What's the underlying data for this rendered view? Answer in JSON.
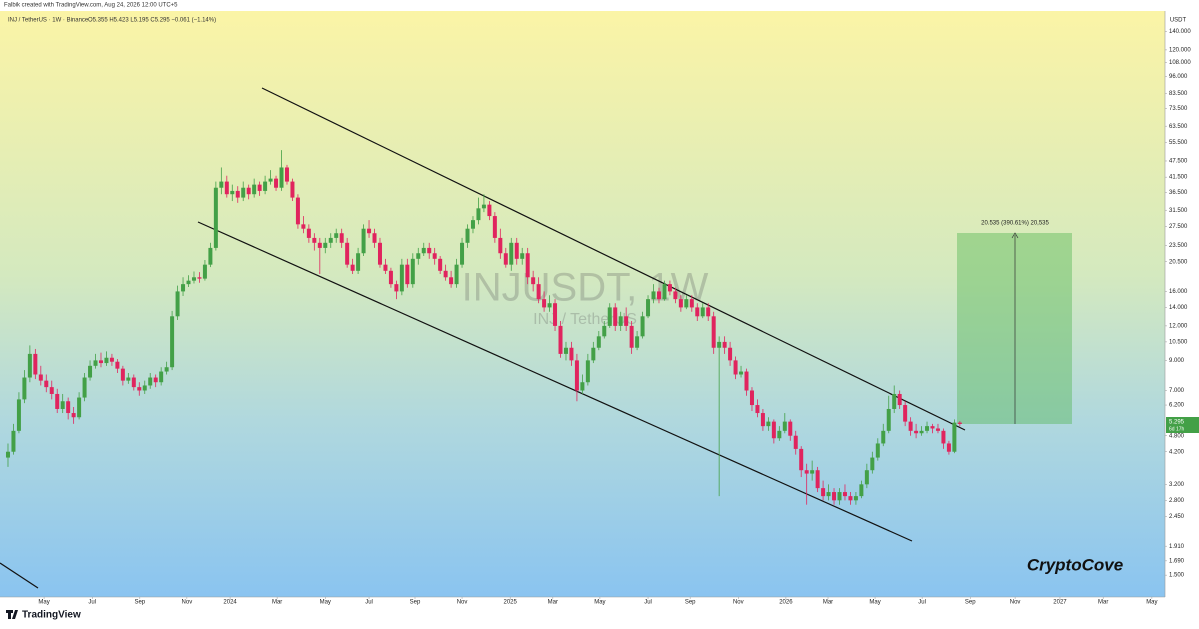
{
  "header": {
    "credit": "Falbik created with TradingView.com, Aug 24, 2026 12:00 UTC+5",
    "logo": "TradingView"
  },
  "chart_data": {
    "type": "candlestick",
    "legend": {
      "symbol": "INJ / TetherUS · 1W · Binance",
      "ohlc": "O5.355 H5.423 L5.195 C5.295 −0.061 (−1.14%)"
    },
    "watermark": {
      "symbol": "INJUSDT, 1W",
      "name": "INJ / TetherUS"
    },
    "y_axis_label": "USDT",
    "last_price": "5.295",
    "countdown": "6d 17h",
    "measure_label": "20.535 (390.61%) 20,535",
    "signature": "CryptoCove",
    "up_color": "#43a047",
    "down_color": "#e0245e",
    "log_scale": true,
    "grid": false,
    "ylim": [
      1.25,
      166
    ],
    "yticks": [
      {
        "value": 140,
        "label": "140.000"
      },
      {
        "value": 120,
        "label": "120.000"
      },
      {
        "value": 108,
        "label": "108.000"
      },
      {
        "value": 96,
        "label": "96.000"
      },
      {
        "value": 83.5,
        "label": "83.500"
      },
      {
        "value": 73.5,
        "label": "73.500"
      },
      {
        "value": 63.5,
        "label": "63.500"
      },
      {
        "value": 55.5,
        "label": "55.500"
      },
      {
        "value": 47.5,
        "label": "47.500"
      },
      {
        "value": 41.5,
        "label": "41.500"
      },
      {
        "value": 36.5,
        "label": "36.500"
      },
      {
        "value": 31.5,
        "label": "31.500"
      },
      {
        "value": 27.5,
        "label": "27.500"
      },
      {
        "value": 23.5,
        "label": "23.500"
      },
      {
        "value": 20.5,
        "label": "20.500"
      },
      {
        "value": 16,
        "label": "16.000"
      },
      {
        "value": 14,
        "label": "14.000"
      },
      {
        "value": 12,
        "label": "12.000"
      },
      {
        "value": 10.5,
        "label": "10.500"
      },
      {
        "value": 9,
        "label": "9.000"
      },
      {
        "value": 7,
        "label": "7.000"
      },
      {
        "value": 6.2,
        "label": "6.200"
      },
      {
        "value": 4.8,
        "label": "4.800"
      },
      {
        "value": 4.2,
        "label": "4.200"
      },
      {
        "value": 3.2,
        "label": "3.200"
      },
      {
        "value": 2.8,
        "label": "2.800"
      },
      {
        "value": 2.45,
        "label": "2.450"
      },
      {
        "value": 1.91,
        "label": "1.910"
      },
      {
        "value": 1.69,
        "label": "1.690"
      },
      {
        "value": 1.5,
        "label": "1.500"
      }
    ],
    "xlim": [
      -1.46,
      211.5
    ],
    "xticks": [
      {
        "value": 6.6,
        "label": "May"
      },
      {
        "value": 15.4,
        "label": "Jul"
      },
      {
        "value": 24.1,
        "label": "Sep"
      },
      {
        "value": 32.7,
        "label": "Nov"
      },
      {
        "value": 40.6,
        "label": "2024"
      },
      {
        "value": 49.2,
        "label": "Mar"
      },
      {
        "value": 58.0,
        "label": "May"
      },
      {
        "value": 66.0,
        "label": "Jul"
      },
      {
        "value": 74.4,
        "label": "Sep"
      },
      {
        "value": 83.0,
        "label": "Nov"
      },
      {
        "value": 91.8,
        "label": "2025"
      },
      {
        "value": 99.6,
        "label": "Mar"
      },
      {
        "value": 108.2,
        "label": "May"
      },
      {
        "value": 117.0,
        "label": "Jul"
      },
      {
        "value": 124.7,
        "label": "Sep"
      },
      {
        "value": 133.5,
        "label": "Nov"
      },
      {
        "value": 142.2,
        "label": "2026"
      },
      {
        "value": 149.9,
        "label": "Mar"
      },
      {
        "value": 158.5,
        "label": "May"
      },
      {
        "value": 167.1,
        "label": "Jul"
      },
      {
        "value": 175.9,
        "label": "Sep"
      },
      {
        "value": 184.1,
        "label": "Nov"
      },
      {
        "value": 192.3,
        "label": "2027"
      },
      {
        "value": 200.2,
        "label": "Mar"
      },
      {
        "value": 209.1,
        "label": "May"
      }
    ],
    "candles": [
      [
        4.0,
        4.5,
        3.7,
        4.2
      ],
      [
        4.2,
        5.3,
        4.1,
        5.0
      ],
      [
        5.0,
        6.9,
        4.9,
        6.5
      ],
      [
        6.5,
        8.3,
        6.3,
        7.8
      ],
      [
        7.8,
        10.2,
        7.5,
        9.5
      ],
      [
        9.5,
        9.9,
        7.7,
        8.0
      ],
      [
        8.0,
        8.6,
        7.3,
        7.6
      ],
      [
        7.6,
        8.0,
        6.9,
        7.2
      ],
      [
        7.2,
        7.6,
        6.5,
        6.8
      ],
      [
        6.8,
        7.1,
        5.8,
        6.0
      ],
      [
        6.0,
        6.8,
        5.8,
        6.4
      ],
      [
        6.4,
        6.6,
        5.5,
        5.8
      ],
      [
        5.8,
        6.1,
        5.3,
        5.6
      ],
      [
        5.6,
        6.9,
        5.5,
        6.6
      ],
      [
        6.6,
        8.1,
        6.4,
        7.8
      ],
      [
        7.8,
        9.0,
        7.6,
        8.6
      ],
      [
        8.6,
        9.5,
        8.4,
        9.0
      ],
      [
        9.0,
        9.6,
        8.5,
        8.8
      ],
      [
        8.8,
        9.7,
        8.6,
        9.2
      ],
      [
        9.2,
        9.5,
        8.6,
        8.9
      ],
      [
        8.9,
        9.1,
        8.1,
        8.4
      ],
      [
        8.4,
        8.6,
        7.3,
        7.6
      ],
      [
        7.6,
        8.1,
        7.4,
        7.8
      ],
      [
        7.8,
        8.0,
        7.0,
        7.2
      ],
      [
        7.2,
        7.5,
        6.7,
        7.0
      ],
      [
        7.0,
        7.6,
        6.8,
        7.3
      ],
      [
        7.3,
        8.1,
        7.1,
        7.8
      ],
      [
        7.8,
        8.0,
        7.2,
        7.5
      ],
      [
        7.5,
        8.5,
        7.3,
        8.2
      ],
      [
        8.2,
        8.9,
        8.0,
        8.5
      ],
      [
        8.5,
        13.6,
        8.3,
        13
      ],
      [
        13,
        16.8,
        12.6,
        16
      ],
      [
        16,
        18,
        15.4,
        17
      ],
      [
        17,
        18.3,
        16.6,
        17.5
      ],
      [
        17.5,
        18.9,
        17.1,
        18
      ],
      [
        18,
        18.8,
        17.2,
        17.8
      ],
      [
        17.8,
        20.8,
        17.5,
        20
      ],
      [
        20,
        24,
        19.6,
        23
      ],
      [
        23,
        40,
        22.5,
        38
      ],
      [
        38,
        45,
        36,
        40
      ],
      [
        40,
        42,
        35,
        36
      ],
      [
        36,
        39,
        34,
        37
      ],
      [
        37,
        38.5,
        33.5,
        35
      ],
      [
        35,
        40,
        34,
        38
      ],
      [
        38,
        39,
        34.5,
        36
      ],
      [
        36,
        41,
        35,
        39
      ],
      [
        39,
        40,
        35.5,
        37
      ],
      [
        37,
        42,
        36,
        40
      ],
      [
        40,
        44,
        39,
        41
      ],
      [
        41,
        42,
        37,
        38
      ],
      [
        38,
        52,
        37,
        45
      ],
      [
        45,
        46,
        39,
        40
      ],
      [
        40,
        41,
        34,
        35
      ],
      [
        35,
        36,
        27,
        28
      ],
      [
        28,
        30,
        26,
        27
      ],
      [
        27,
        28,
        24,
        25
      ],
      [
        25,
        26,
        22.5,
        24
      ],
      [
        24,
        25,
        18.5,
        23
      ],
      [
        23,
        25,
        22,
        24
      ],
      [
        24,
        26,
        23,
        25
      ],
      [
        25,
        27,
        24,
        26
      ],
      [
        26,
        27,
        23,
        24
      ],
      [
        24,
        25,
        19.5,
        20
      ],
      [
        20,
        21,
        18.5,
        19
      ],
      [
        19,
        23,
        18.5,
        22
      ],
      [
        22,
        28,
        21.5,
        27
      ],
      [
        27,
        29,
        25,
        26
      ],
      [
        26,
        27,
        23,
        24
      ],
      [
        24,
        25,
        19.5,
        20
      ],
      [
        20,
        21,
        18.5,
        19
      ],
      [
        19,
        19.5,
        16.5,
        17
      ],
      [
        17,
        17.5,
        15,
        16
      ],
      [
        16,
        21,
        15.5,
        20
      ],
      [
        20,
        21,
        16.5,
        17
      ],
      [
        17,
        22,
        16.5,
        21
      ],
      [
        21,
        23,
        20,
        22
      ],
      [
        22,
        24,
        21.5,
        23
      ],
      [
        23,
        24,
        21,
        22
      ],
      [
        22,
        23,
        20,
        21
      ],
      [
        21,
        21.5,
        18.5,
        19
      ],
      [
        19,
        20,
        17.5,
        18
      ],
      [
        18,
        19,
        16.5,
        17
      ],
      [
        17,
        21,
        16.5,
        20
      ],
      [
        20,
        25,
        19.5,
        24
      ],
      [
        24,
        28,
        23,
        27
      ],
      [
        27,
        30,
        26,
        29
      ],
      [
        29,
        35,
        28,
        32
      ],
      [
        32,
        36,
        31,
        33
      ],
      [
        33,
        34,
        29,
        30
      ],
      [
        30,
        31,
        24,
        25
      ],
      [
        25,
        27,
        21,
        22
      ],
      [
        22,
        23,
        19.5,
        20
      ],
      [
        20,
        25,
        19,
        24
      ],
      [
        24,
        25,
        20,
        21
      ],
      [
        21,
        23,
        20,
        22
      ],
      [
        22,
        23,
        17,
        18
      ],
      [
        18,
        19,
        16,
        17
      ],
      [
        17,
        18,
        14.5,
        15
      ],
      [
        15,
        16,
        13.5,
        14
      ],
      [
        14,
        15.5,
        13.5,
        14.5
      ],
      [
        14.5,
        15,
        11.5,
        12
      ],
      [
        12,
        12.5,
        9.2,
        9.5
      ],
      [
        9.5,
        10.5,
        9.0,
        10
      ],
      [
        10,
        10.5,
        8.6,
        9
      ],
      [
        9,
        9.5,
        6.4,
        7
      ],
      [
        7,
        8.0,
        6.8,
        7.5
      ],
      [
        7.5,
        9.5,
        7.3,
        9
      ],
      [
        9,
        10.5,
        8.8,
        10
      ],
      [
        10,
        11.5,
        9.8,
        11
      ],
      [
        11,
        12.5,
        10.8,
        12
      ],
      [
        12,
        14.5,
        11.8,
        14
      ],
      [
        14,
        14.5,
        11.5,
        12
      ],
      [
        12,
        13.5,
        11.5,
        13
      ],
      [
        13,
        14,
        11.5,
        12
      ],
      [
        12,
        12.5,
        9.5,
        10
      ],
      [
        10,
        11.5,
        9.8,
        11
      ],
      [
        11,
        13.5,
        10.8,
        13
      ],
      [
        13,
        15.5,
        12.8,
        15
      ],
      [
        15,
        17,
        14.5,
        16
      ],
      [
        16,
        16.5,
        14.5,
        15
      ],
      [
        15,
        17.5,
        14.8,
        17
      ],
      [
        17,
        17.5,
        15.5,
        16
      ],
      [
        16,
        16.5,
        14.5,
        15
      ],
      [
        15,
        15.5,
        13.5,
        14
      ],
      [
        14,
        15.5,
        13.8,
        15
      ],
      [
        15,
        15.5,
        13.5,
        14
      ],
      [
        14,
        14.5,
        12.5,
        13
      ],
      [
        13,
        14.5,
        12.8,
        14
      ],
      [
        14,
        14.5,
        12.5,
        13
      ],
      [
        13,
        13.5,
        9.5,
        10
      ],
      [
        10,
        11,
        2.9,
        10.5
      ],
      [
        10.5,
        11,
        9.5,
        10
      ],
      [
        10,
        10.5,
        8.6,
        9
      ],
      [
        9,
        9.3,
        7.7,
        8
      ],
      [
        8,
        8.6,
        7.8,
        8.2
      ],
      [
        8.2,
        8.4,
        6.7,
        7
      ],
      [
        7,
        7.2,
        5.9,
        6.2
      ],
      [
        6.2,
        6.5,
        5.6,
        5.8
      ],
      [
        5.8,
        6.0,
        5.0,
        5.2
      ],
      [
        5.2,
        5.6,
        5.0,
        5.4
      ],
      [
        5.4,
        5.5,
        4.5,
        4.7
      ],
      [
        4.7,
        5.2,
        4.6,
        5.0
      ],
      [
        5.0,
        5.8,
        4.9,
        5.4
      ],
      [
        5.4,
        5.5,
        4.6,
        4.8
      ],
      [
        4.8,
        5.0,
        4.1,
        4.3
      ],
      [
        4.3,
        4.4,
        3.4,
        3.6
      ],
      [
        3.6,
        3.8,
        2.7,
        3.5
      ],
      [
        3.5,
        3.9,
        3.3,
        3.6
      ],
      [
        3.6,
        3.7,
        3.0,
        3.1
      ],
      [
        3.1,
        3.3,
        2.8,
        2.9
      ],
      [
        2.9,
        3.2,
        2.8,
        3.0
      ],
      [
        3.0,
        3.1,
        2.7,
        2.8
      ],
      [
        2.8,
        3.1,
        2.7,
        3.0
      ],
      [
        3.0,
        3.2,
        2.8,
        2.9
      ],
      [
        2.9,
        3.0,
        2.7,
        2.8
      ],
      [
        2.8,
        3.0,
        2.7,
        2.9
      ],
      [
        2.9,
        3.3,
        2.85,
        3.2
      ],
      [
        3.2,
        3.8,
        3.1,
        3.6
      ],
      [
        3.6,
        4.2,
        3.5,
        4.0
      ],
      [
        4.0,
        4.7,
        3.9,
        4.5
      ],
      [
        4.5,
        5.3,
        4.4,
        5.0
      ],
      [
        5.0,
        6.7,
        4.9,
        6.0
      ],
      [
        6.0,
        7.3,
        5.8,
        6.8
      ],
      [
        6.8,
        7.0,
        6.0,
        6.2
      ],
      [
        6.2,
        6.4,
        5.2,
        5.4
      ],
      [
        5.4,
        5.6,
        4.8,
        5.0
      ],
      [
        5.0,
        5.3,
        4.7,
        4.9
      ],
      [
        4.9,
        5.2,
        4.8,
        5.0
      ],
      [
        5.0,
        5.4,
        4.9,
        5.2
      ],
      [
        5.2,
        5.3,
        4.9,
        5.1
      ],
      [
        5.1,
        5.3,
        4.9,
        5.0
      ],
      [
        5.0,
        5.1,
        4.3,
        4.5
      ],
      [
        4.5,
        4.6,
        4.1,
        4.2
      ],
      [
        4.2,
        5.5,
        4.15,
        5.355
      ],
      [
        5.355,
        5.423,
        5.195,
        5.295
      ]
    ]
  }
}
